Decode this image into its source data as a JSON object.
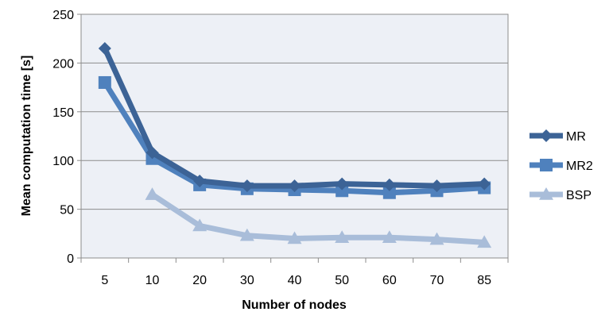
{
  "chart_data": {
    "type": "line",
    "title": "",
    "xlabel": "Number of nodes",
    "ylabel": "Mean computation time [s]",
    "categories": [
      "5",
      "10",
      "20",
      "30",
      "40",
      "50",
      "60",
      "70",
      "85"
    ],
    "ylim": [
      0,
      250
    ],
    "yticks": [
      "0",
      "50",
      "100",
      "150",
      "200",
      "250"
    ],
    "grid": true,
    "legend_position": "right",
    "series": [
      {
        "name": "MR",
        "values": [
          215,
          108,
          79,
          74,
          74,
          76,
          75,
          74,
          76
        ],
        "color": "#3c6396",
        "marker": "diamond"
      },
      {
        "name": "MR2",
        "values": [
          180,
          102,
          75,
          71,
          70,
          69,
          67,
          69,
          72
        ],
        "color": "#4f81bd",
        "marker": "square"
      },
      {
        "name": "BSP",
        "values": [
          null,
          65,
          33,
          23,
          20,
          21,
          21,
          19,
          16
        ],
        "color": "#a9bdd9",
        "marker": "triangle"
      }
    ],
    "plot_background": "#edf0f6"
  }
}
